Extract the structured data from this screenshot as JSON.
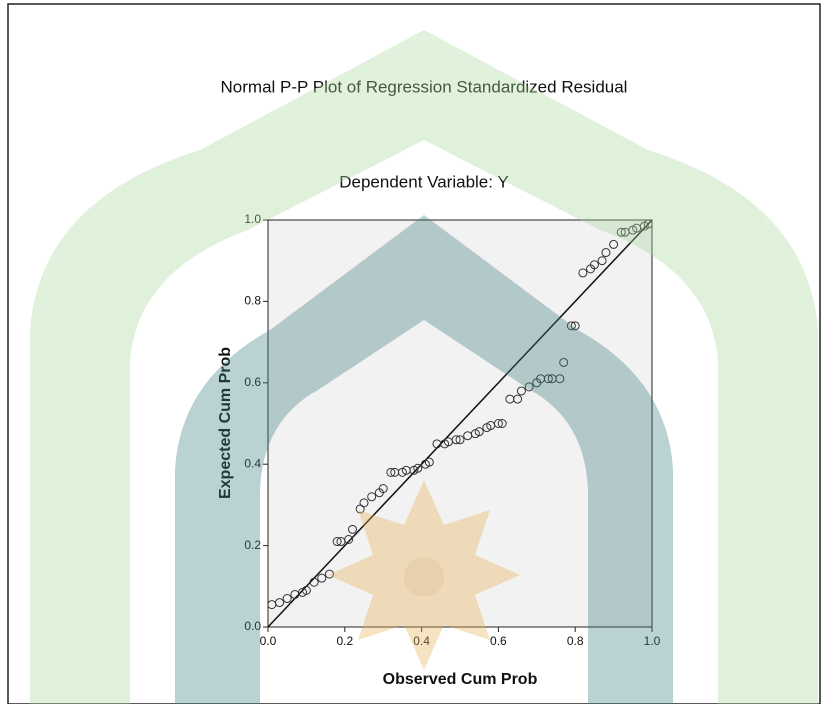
{
  "chart_data": {
    "type": "scatter",
    "title": "Normal P-P Plot of Regression Standardized Residual",
    "subtitle": "Dependent Variable: Y",
    "x_label": "Observed Cum Prob",
    "y_label": "Expected Cum Prob",
    "xlim": [
      0,
      1
    ],
    "ylim": [
      0,
      1
    ],
    "xticks": [
      {
        "value": 0,
        "label": "0.0"
      },
      {
        "value": 0.2,
        "label": "0.2"
      },
      {
        "value": 0.4,
        "label": "0.4"
      },
      {
        "value": 0.6,
        "label": "0.6"
      },
      {
        "value": 0.8,
        "label": "0.8"
      },
      {
        "value": 1,
        "label": "1.0"
      }
    ],
    "yticks": [
      {
        "value": 0,
        "label": "0.0"
      },
      {
        "value": 0.2,
        "label": "0.2"
      },
      {
        "value": 0.4,
        "label": "0.4"
      },
      {
        "value": 0.6,
        "label": "0.6"
      },
      {
        "value": 0.8,
        "label": "0.8"
      },
      {
        "value": 1,
        "label": "1.0"
      }
    ],
    "color": "#333333",
    "x": [
      0.01,
      0.03,
      0.05,
      0.07,
      0.09,
      0.1,
      0.12,
      0.14,
      0.16,
      0.18,
      0.19,
      0.21,
      0.22,
      0.24,
      0.25,
      0.27,
      0.29,
      0.3,
      0.32,
      0.33,
      0.35,
      0.36,
      0.38,
      0.39,
      0.41,
      0.42,
      0.44,
      0.46,
      0.47,
      0.49,
      0.5,
      0.52,
      0.54,
      0.55,
      0.57,
      0.58,
      0.6,
      0.61,
      0.63,
      0.65,
      0.66,
      0.68,
      0.7,
      0.71,
      0.73,
      0.74,
      0.76,
      0.77,
      0.79,
      0.8,
      0.82,
      0.84,
      0.85,
      0.87,
      0.88,
      0.9,
      0.92,
      0.93,
      0.95,
      0.96,
      0.98,
      0.99
    ],
    "y": [
      0.055,
      0.06,
      0.07,
      0.08,
      0.085,
      0.09,
      0.11,
      0.12,
      0.13,
      0.21,
      0.21,
      0.215,
      0.24,
      0.29,
      0.305,
      0.32,
      0.33,
      0.34,
      0.38,
      0.38,
      0.38,
      0.385,
      0.385,
      0.39,
      0.4,
      0.405,
      0.45,
      0.45,
      0.455,
      0.46,
      0.46,
      0.47,
      0.475,
      0.48,
      0.49,
      0.495,
      0.5,
      0.5,
      0.56,
      0.56,
      0.58,
      0.59,
      0.6,
      0.61,
      0.61,
      0.61,
      0.61,
      0.65,
      0.74,
      0.74,
      0.87,
      0.88,
      0.89,
      0.9,
      0.92,
      0.94,
      0.97,
      0.97,
      0.975,
      0.98,
      0.985,
      0.99
    ]
  }
}
